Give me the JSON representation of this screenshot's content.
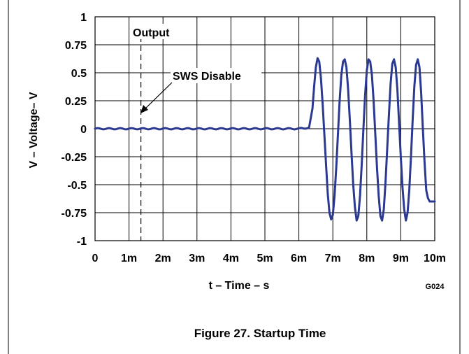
{
  "chart_data": {
    "type": "line",
    "title": "",
    "xlabel": "t – Time – s",
    "ylabel": "V – Voltage– V",
    "xlim": [
      0,
      10
    ],
    "ylim": [
      -1,
      1
    ],
    "x_tick_labels": [
      "0",
      "1m",
      "2m",
      "3m",
      "4m",
      "5m",
      "6m",
      "7m",
      "8m",
      "9m",
      "10m"
    ],
    "y_tick_labels": [
      "1",
      "0.75",
      "0.5",
      "0.25",
      "0",
      "-0.25",
      "-0.5",
      "-0.75",
      "-1"
    ],
    "x_tick_values_ms": [
      0,
      1,
      2,
      3,
      4,
      5,
      6,
      7,
      8,
      9,
      10
    ],
    "y_tick_values": [
      1,
      0.75,
      0.5,
      0.25,
      0,
      -0.25,
      -0.5,
      -0.75,
      -1
    ],
    "grid": true,
    "series": [
      {
        "color": "#2b3990",
        "x_ms": [
          0,
          0.5,
          1,
          1.5,
          2,
          2.5,
          3,
          3.5,
          4,
          4.5,
          5,
          5.5,
          6,
          6.3,
          6.4,
          6.45,
          6.5,
          6.55,
          6.6,
          6.65,
          6.7,
          6.75,
          6.8,
          6.85,
          6.9,
          6.95,
          7,
          7.05,
          7.1,
          7.15,
          7.2,
          7.25,
          7.3,
          7.35,
          7.4,
          7.45,
          7.5,
          7.55,
          7.6,
          7.65,
          7.7,
          7.75,
          7.8,
          7.85,
          7.9,
          7.95,
          8,
          8.05,
          8.1,
          8.15,
          8.2,
          8.25,
          8.3,
          8.35,
          8.4,
          8.45,
          8.5,
          8.55,
          8.6,
          8.65,
          8.7,
          8.75,
          8.8,
          8.85,
          8.9,
          8.95,
          9,
          9.05,
          9.1,
          9.15,
          9.2,
          9.25,
          9.3,
          9.35,
          9.4,
          9.45,
          9.5,
          9.55,
          9.6,
          9.65,
          9.7,
          9.75,
          9.8,
          9.85,
          9.9,
          9.95,
          10
        ],
        "y": [
          0,
          0,
          0,
          0,
          0,
          0,
          0,
          0,
          0,
          0,
          0,
          0,
          0,
          0.01,
          0.18,
          0.38,
          0.55,
          0.63,
          0.6,
          0.45,
          0.22,
          -0.05,
          -0.32,
          -0.58,
          -0.75,
          -0.81,
          -0.77,
          -0.6,
          -0.35,
          -0.05,
          0.25,
          0.48,
          0.6,
          0.62,
          0.55,
          0.35,
          0.08,
          -0.22,
          -0.5,
          -0.7,
          -0.82,
          -0.78,
          -0.6,
          -0.32,
          0,
          0.3,
          0.52,
          0.62,
          0.6,
          0.48,
          0.25,
          -0.05,
          -0.35,
          -0.6,
          -0.78,
          -0.82,
          -0.72,
          -0.48,
          -0.18,
          0.12,
          0.4,
          0.58,
          0.62,
          0.55,
          0.35,
          0.05,
          -0.25,
          -0.52,
          -0.72,
          -0.82,
          -0.75,
          -0.55,
          -0.25,
          0.08,
          0.38,
          0.57,
          0.62,
          0.55,
          0.32,
          0,
          -0.3,
          -0.55,
          -0.62,
          -0.65,
          -0.65,
          -0.65,
          -0.65
        ]
      }
    ],
    "annotations": {
      "marker_x_ms": 1.35,
      "output_label": "Output",
      "sws_label": "SWS Disable",
      "code": "G024"
    }
  },
  "caption": "Figure 27. Startup Time"
}
